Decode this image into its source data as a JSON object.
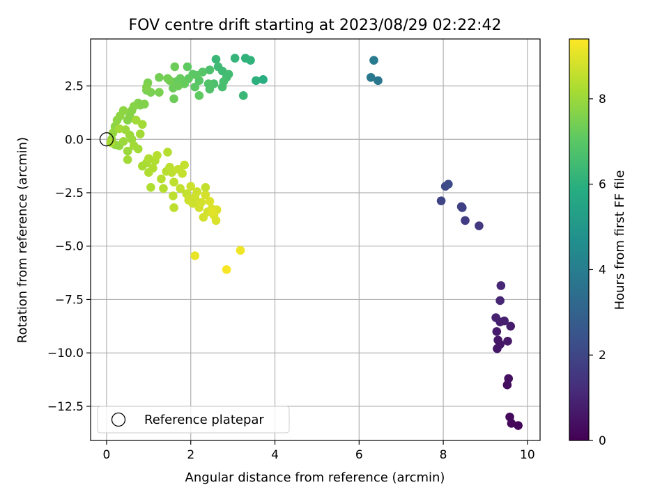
{
  "chart_data": {
    "type": "scatter",
    "title": "FOV centre drift starting at 2023/08/29 02:22:42",
    "xlabel": "Angular distance from reference (arcmin)",
    "ylabel": "Rotation from reference (arcmin)",
    "xlim": [
      -0.38,
      10.3
    ],
    "ylim": [
      -14.1,
      4.7
    ],
    "xticks": [
      0,
      2,
      4,
      6,
      8,
      10
    ],
    "xtick_labels": [
      "0",
      "2",
      "4",
      "6",
      "8",
      "10"
    ],
    "yticks": [
      2.5,
      0,
      -2.5,
      -5,
      -7.5,
      -10,
      -12.5
    ],
    "ytick_labels": [
      "2.5",
      "0.0",
      "−2.5",
      "−5.0",
      "−7.5",
      "−10.0",
      "−12.5"
    ],
    "grid": true,
    "legend": {
      "placement": "lower-left",
      "entries": [
        "Reference platepar"
      ]
    },
    "reference_point": {
      "x": 0,
      "y": 0,
      "marker": "open-circle"
    },
    "colormap": {
      "name": "viridis",
      "min": 0,
      "max": 9.4
    },
    "colorbar": {
      "label": "Hours from first FF file",
      "ticks": [
        0,
        2,
        4,
        6,
        8
      ],
      "tick_labels": [
        "0",
        "2",
        "4",
        "6",
        "8"
      ]
    },
    "points": [
      {
        "x": 9.78,
        "y": -13.4,
        "c": 0.15
      },
      {
        "x": 9.62,
        "y": -13.3,
        "c": 0.2
      },
      {
        "x": 9.58,
        "y": -13.0,
        "c": 0.25
      },
      {
        "x": 9.52,
        "y": -11.5,
        "c": 0.35
      },
      {
        "x": 9.55,
        "y": -11.2,
        "c": 0.4
      },
      {
        "x": 9.28,
        "y": -9.8,
        "c": 0.55
      },
      {
        "x": 9.35,
        "y": -9.6,
        "c": 0.6
      },
      {
        "x": 9.3,
        "y": -9.4,
        "c": 0.6
      },
      {
        "x": 9.53,
        "y": -9.45,
        "c": 0.65
      },
      {
        "x": 9.27,
        "y": -9.0,
        "c": 0.7
      },
      {
        "x": 9.6,
        "y": -8.75,
        "c": 0.75
      },
      {
        "x": 9.35,
        "y": -8.55,
        "c": 0.8
      },
      {
        "x": 9.45,
        "y": -8.5,
        "c": 0.85
      },
      {
        "x": 9.25,
        "y": -8.35,
        "c": 0.9
      },
      {
        "x": 9.35,
        "y": -7.55,
        "c": 1.0
      },
      {
        "x": 9.37,
        "y": -6.85,
        "c": 1.05
      },
      {
        "x": 8.85,
        "y": -4.05,
        "c": 1.6
      },
      {
        "x": 8.52,
        "y": -3.8,
        "c": 1.7
      },
      {
        "x": 8.43,
        "y": -3.15,
        "c": 1.8
      },
      {
        "x": 8.45,
        "y": -3.2,
        "c": 1.85
      },
      {
        "x": 7.95,
        "y": -2.88,
        "c": 1.95
      },
      {
        "x": 8.05,
        "y": -2.2,
        "c": 2.1
      },
      {
        "x": 8.12,
        "y": -2.1,
        "c": 2.2
      },
      {
        "x": 6.45,
        "y": 2.75,
        "c": 3.7
      },
      {
        "x": 6.28,
        "y": 2.9,
        "c": 3.8
      },
      {
        "x": 6.35,
        "y": 3.7,
        "c": 3.9
      },
      {
        "x": 3.72,
        "y": 2.8,
        "c": 5.9
      },
      {
        "x": 3.55,
        "y": 2.75,
        "c": 6.0
      },
      {
        "x": 3.3,
        "y": 3.8,
        "c": 6.1
      },
      {
        "x": 3.42,
        "y": 3.7,
        "c": 6.1
      },
      {
        "x": 3.05,
        "y": 3.8,
        "c": 6.2
      },
      {
        "x": 3.25,
        "y": 2.05,
        "c": 6.3
      },
      {
        "x": 2.6,
        "y": 3.75,
        "c": 6.3
      },
      {
        "x": 2.65,
        "y": 3.4,
        "c": 6.4
      },
      {
        "x": 2.75,
        "y": 3.2,
        "c": 6.4
      },
      {
        "x": 2.85,
        "y": 2.9,
        "c": 6.5
      },
      {
        "x": 2.9,
        "y": 3.05,
        "c": 6.5
      },
      {
        "x": 2.78,
        "y": 2.7,
        "c": 6.6
      },
      {
        "x": 2.75,
        "y": 2.45,
        "c": 6.6
      },
      {
        "x": 2.55,
        "y": 2.6,
        "c": 6.7
      },
      {
        "x": 2.45,
        "y": 3.25,
        "c": 6.7
      },
      {
        "x": 2.42,
        "y": 2.6,
        "c": 6.8
      },
      {
        "x": 2.45,
        "y": 2.35,
        "c": 6.8
      },
      {
        "x": 2.28,
        "y": 3.15,
        "c": 6.9
      },
      {
        "x": 2.2,
        "y": 2.75,
        "c": 6.9
      },
      {
        "x": 2.15,
        "y": 3.0,
        "c": 7.0
      },
      {
        "x": 2.05,
        "y": 3.05,
        "c": 7.0
      },
      {
        "x": 2.1,
        "y": 2.45,
        "c": 7.0
      },
      {
        "x": 2.2,
        "y": 2.05,
        "c": 7.1
      },
      {
        "x": 1.95,
        "y": 2.85,
        "c": 7.1
      },
      {
        "x": 1.92,
        "y": 3.4,
        "c": 7.1
      },
      {
        "x": 1.85,
        "y": 2.6,
        "c": 7.2
      },
      {
        "x": 1.75,
        "y": 2.85,
        "c": 7.2
      },
      {
        "x": 1.65,
        "y": 2.7,
        "c": 7.2
      },
      {
        "x": 1.7,
        "y": 2.5,
        "c": 7.3
      },
      {
        "x": 1.58,
        "y": 2.4,
        "c": 7.3
      },
      {
        "x": 1.6,
        "y": 1.9,
        "c": 7.3
      },
      {
        "x": 1.62,
        "y": 3.4,
        "c": 7.3
      },
      {
        "x": 1.5,
        "y": 2.75,
        "c": 7.4
      },
      {
        "x": 1.45,
        "y": 2.85,
        "c": 7.4
      },
      {
        "x": 1.25,
        "y": 2.9,
        "c": 7.4
      },
      {
        "x": 1.25,
        "y": 2.2,
        "c": 7.5
      },
      {
        "x": 1.05,
        "y": 2.2,
        "c": 7.5
      },
      {
        "x": 0.98,
        "y": 2.65,
        "c": 7.5
      },
      {
        "x": 0.95,
        "y": 2.3,
        "c": 7.5
      },
      {
        "x": 0.95,
        "y": 2.45,
        "c": 7.6
      },
      {
        "x": 0.9,
        "y": 1.65,
        "c": 7.6
      },
      {
        "x": 0.8,
        "y": 1.6,
        "c": 7.6
      },
      {
        "x": 0.75,
        "y": 1.7,
        "c": 7.6
      },
      {
        "x": 0.65,
        "y": 1.55,
        "c": 7.7
      },
      {
        "x": 0.6,
        "y": 1.35,
        "c": 7.7
      },
      {
        "x": 0.55,
        "y": 1.1,
        "c": 7.7
      },
      {
        "x": 0.5,
        "y": 0.9,
        "c": 7.7
      },
      {
        "x": 0.4,
        "y": 1.35,
        "c": 7.8
      },
      {
        "x": 0.32,
        "y": 1.1,
        "c": 7.8
      },
      {
        "x": 0.25,
        "y": 0.9,
        "c": 7.8
      },
      {
        "x": 0.2,
        "y": 0.6,
        "c": 7.8
      },
      {
        "x": 0.15,
        "y": 0.3,
        "c": 7.9
      },
      {
        "x": 0.12,
        "y": 0.0,
        "c": 7.9
      },
      {
        "x": 0.2,
        "y": -0.25,
        "c": 7.9
      },
      {
        "x": 0.3,
        "y": -0.3,
        "c": 7.9
      },
      {
        "x": 0.4,
        "y": -0.1,
        "c": 8.0
      },
      {
        "x": 0.45,
        "y": 0.45,
        "c": 8.0
      },
      {
        "x": 0.55,
        "y": 0.2,
        "c": 8.0
      },
      {
        "x": 0.6,
        "y": 0.0,
        "c": 8.0
      },
      {
        "x": 0.5,
        "y": -0.55,
        "c": 8.0
      },
      {
        "x": 0.5,
        "y": -0.95,
        "c": 8.1
      },
      {
        "x": 0.65,
        "y": -0.3,
        "c": 8.1
      },
      {
        "x": 0.75,
        "y": -0.45,
        "c": 8.1
      },
      {
        "x": 0.8,
        "y": 0.25,
        "c": 8.1
      },
      {
        "x": 0.85,
        "y": 0.7,
        "c": 8.1
      },
      {
        "x": 0.7,
        "y": 0.9,
        "c": 8.1
      },
      {
        "x": 0.3,
        "y": 0.5,
        "c": 8.1
      },
      {
        "x": 0.1,
        "y": -0.15,
        "c": 8.2
      },
      {
        "x": 0.85,
        "y": -1.25,
        "c": 8.2
      },
      {
        "x": 0.95,
        "y": -1.1,
        "c": 8.2
      },
      {
        "x": 1.0,
        "y": -0.9,
        "c": 8.3
      },
      {
        "x": 1.0,
        "y": -1.55,
        "c": 8.3
      },
      {
        "x": 1.05,
        "y": -2.25,
        "c": 8.3
      },
      {
        "x": 1.1,
        "y": -1.35,
        "c": 8.3
      },
      {
        "x": 1.15,
        "y": -1.0,
        "c": 8.3
      },
      {
        "x": 1.2,
        "y": -0.75,
        "c": 8.4
      },
      {
        "x": 1.3,
        "y": -1.85,
        "c": 8.4
      },
      {
        "x": 1.35,
        "y": -2.3,
        "c": 8.4
      },
      {
        "x": 1.42,
        "y": -1.5,
        "c": 8.4
      },
      {
        "x": 1.45,
        "y": -0.6,
        "c": 8.4
      },
      {
        "x": 1.5,
        "y": -1.3,
        "c": 8.5
      },
      {
        "x": 1.55,
        "y": -1.55,
        "c": 8.5
      },
      {
        "x": 1.6,
        "y": -2.0,
        "c": 8.5
      },
      {
        "x": 1.58,
        "y": -2.65,
        "c": 8.5
      },
      {
        "x": 1.6,
        "y": -3.2,
        "c": 8.5
      },
      {
        "x": 1.7,
        "y": -1.4,
        "c": 8.6
      },
      {
        "x": 1.75,
        "y": -2.3,
        "c": 8.6
      },
      {
        "x": 1.8,
        "y": -1.6,
        "c": 8.6
      },
      {
        "x": 1.85,
        "y": -1.2,
        "c": 8.6
      },
      {
        "x": 1.9,
        "y": -2.55,
        "c": 8.6
      },
      {
        "x": 1.95,
        "y": -2.85,
        "c": 8.7
      },
      {
        "x": 2.0,
        "y": -2.2,
        "c": 8.7
      },
      {
        "x": 2.05,
        "y": -3.0,
        "c": 8.7
      },
      {
        "x": 2.1,
        "y": -2.7,
        "c": 8.7
      },
      {
        "x": 2.15,
        "y": -2.45,
        "c": 8.7
      },
      {
        "x": 2.2,
        "y": -3.2,
        "c": 8.8
      },
      {
        "x": 2.25,
        "y": -2.95,
        "c": 8.8
      },
      {
        "x": 2.3,
        "y": -3.65,
        "c": 8.8
      },
      {
        "x": 2.35,
        "y": -2.6,
        "c": 8.8
      },
      {
        "x": 2.4,
        "y": -3.4,
        "c": 8.8
      },
      {
        "x": 2.45,
        "y": -2.9,
        "c": 8.9
      },
      {
        "x": 2.5,
        "y": -3.25,
        "c": 8.9
      },
      {
        "x": 2.55,
        "y": -3.55,
        "c": 8.9
      },
      {
        "x": 2.6,
        "y": -3.8,
        "c": 8.9
      },
      {
        "x": 2.62,
        "y": -3.3,
        "c": 8.9
      },
      {
        "x": 2.52,
        "y": -3.4,
        "c": 9.0
      },
      {
        "x": 2.35,
        "y": -2.25,
        "c": 8.6
      },
      {
        "x": 2.1,
        "y": -5.45,
        "c": 9.1
      },
      {
        "x": 3.18,
        "y": -5.2,
        "c": 9.2
      },
      {
        "x": 2.85,
        "y": -6.1,
        "c": 9.3
      }
    ]
  }
}
